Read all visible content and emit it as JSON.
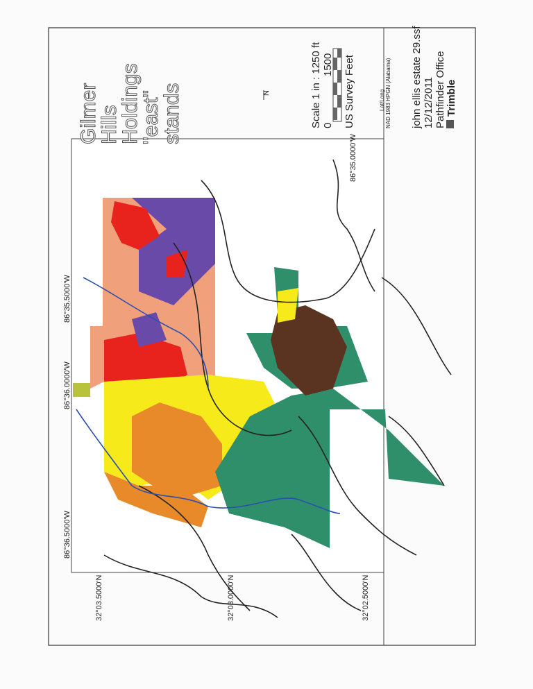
{
  "title": {
    "lines": [
      "Gilmer",
      "Hills",
      "Holdings",
      "\"east\"",
      "stands"
    ]
  },
  "north_arrow": {
    "label": "N",
    "icon": "north-arrow-icon"
  },
  "scale": {
    "text": "Scale 1 in : 1250 ft",
    "start": "0",
    "end": "1500",
    "units": "US Survey Feet"
  },
  "projection": {
    "line1": "Lat/Long",
    "line2": "NAD 1983 HPGN (Alabama)"
  },
  "file": {
    "name": "john ellis estate 29.ssf",
    "date": "12/12/2011",
    "software": "Pathfinder Office",
    "brand": "Trimble"
  },
  "longitude_labels": [
    "86°36.5000'W",
    "86°36.0000'W",
    "86°35.5000'W",
    "86°35.0000'W"
  ],
  "latitude_labels": [
    "32°03.5000'N",
    "32°03.0000'N",
    "32°02.5000'N"
  ],
  "colors": {
    "salmon": "#f0a07a",
    "red": "#e8231e",
    "purple": "#6a4aa8",
    "yellow": "#f7ea1a",
    "orange": "#e98a2a",
    "green": "#2f8f6a",
    "brown": "#5a3420",
    "lime": "#b8c23a",
    "stream": "#2a4fb0"
  }
}
